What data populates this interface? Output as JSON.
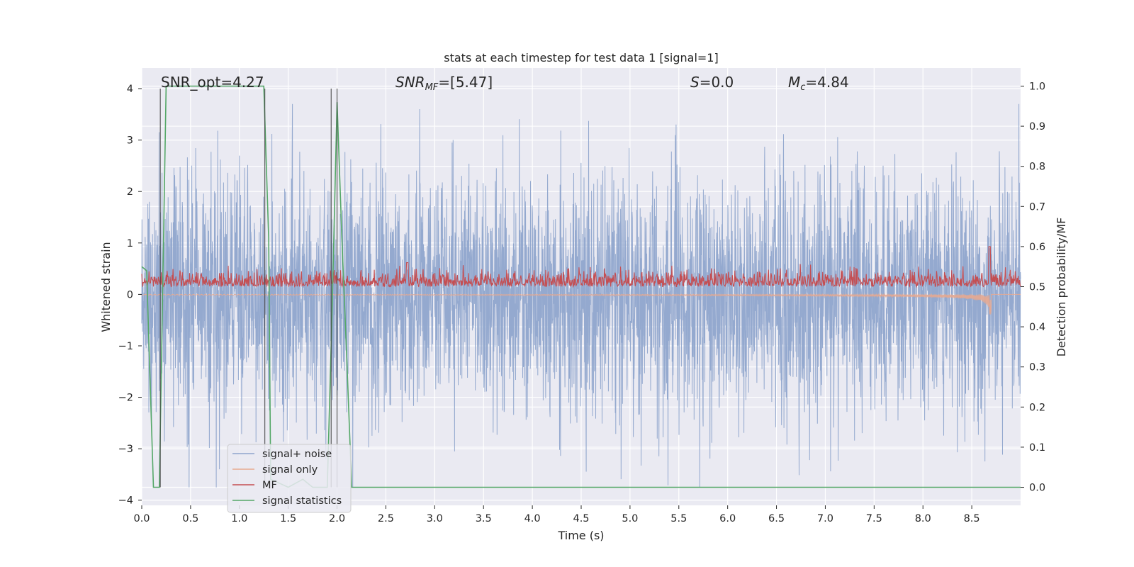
{
  "chart_data": {
    "type": "line",
    "title": "stats at each timestep for test data 1 [signal=1]",
    "xlabel": "Time (s)",
    "ylabel": "Whitened strain",
    "y2label": "Detection probability/MF",
    "xlim": [
      0.0,
      9.0
    ],
    "ylim": [
      -4.1,
      4.4
    ],
    "y2lim": [
      -0.045,
      1.045
    ],
    "xticks": [
      "0.0",
      "0.5",
      "1.0",
      "1.5",
      "2.0",
      "2.5",
      "3.0",
      "3.5",
      "4.0",
      "4.5",
      "5.0",
      "5.5",
      "6.0",
      "6.5",
      "7.0",
      "7.5",
      "8.0",
      "8.5"
    ],
    "yticks": [
      "4",
      "3",
      "2",
      "1",
      "0",
      "−1",
      "−2",
      "−3",
      "−4"
    ],
    "y2ticks": [
      "1.0",
      "0.9",
      "0.8",
      "0.7",
      "0.6",
      "0.5",
      "0.4",
      "0.3",
      "0.2",
      "0.1",
      "0.0"
    ],
    "grid": true,
    "legend_position": "lower-left",
    "annotations": [
      {
        "text": "SNR_opt=4.27",
        "x": 0.2
      },
      {
        "text": "SNR",
        "sub": "MF",
        "rest": "=[5.47]",
        "x": 2.6
      },
      {
        "text": "S",
        "rest": "=0.0",
        "x": 5.6
      },
      {
        "text": "M",
        "sub": "c",
        "rest": "=4.84",
        "x": 6.6
      }
    ],
    "vlines": [
      0.19,
      1.26,
      1.94,
      2.0
    ],
    "series": [
      {
        "name": "signal+ noise",
        "color": "#8fa5cc",
        "kind": "noise",
        "amplitude": 1.15,
        "peak": 3.7
      },
      {
        "name": "signal only",
        "color": "#e8a98f",
        "kind": "chirp",
        "end": 8.7,
        "min": -0.45
      },
      {
        "name": "MF",
        "color": "#c44e52",
        "kind": "mf",
        "base": 0.5,
        "peak": 0.56
      },
      {
        "name": "signal statistics",
        "color": "#55a868",
        "kind": "step",
        "x": [
          0.0,
          0.05,
          0.12,
          0.18,
          0.25,
          1.25,
          1.3,
          1.32,
          1.5,
          1.65,
          1.75,
          1.9,
          1.95,
          2.0,
          2.05,
          2.1,
          2.15,
          2.2,
          9.0
        ],
        "y": [
          0.55,
          0.54,
          0.0,
          0.0,
          1.0,
          1.0,
          0.62,
          0.02,
          0.0,
          0.02,
          0.0,
          0.0,
          0.45,
          0.96,
          0.62,
          0.32,
          0.0,
          0.0,
          0.0
        ]
      }
    ]
  }
}
